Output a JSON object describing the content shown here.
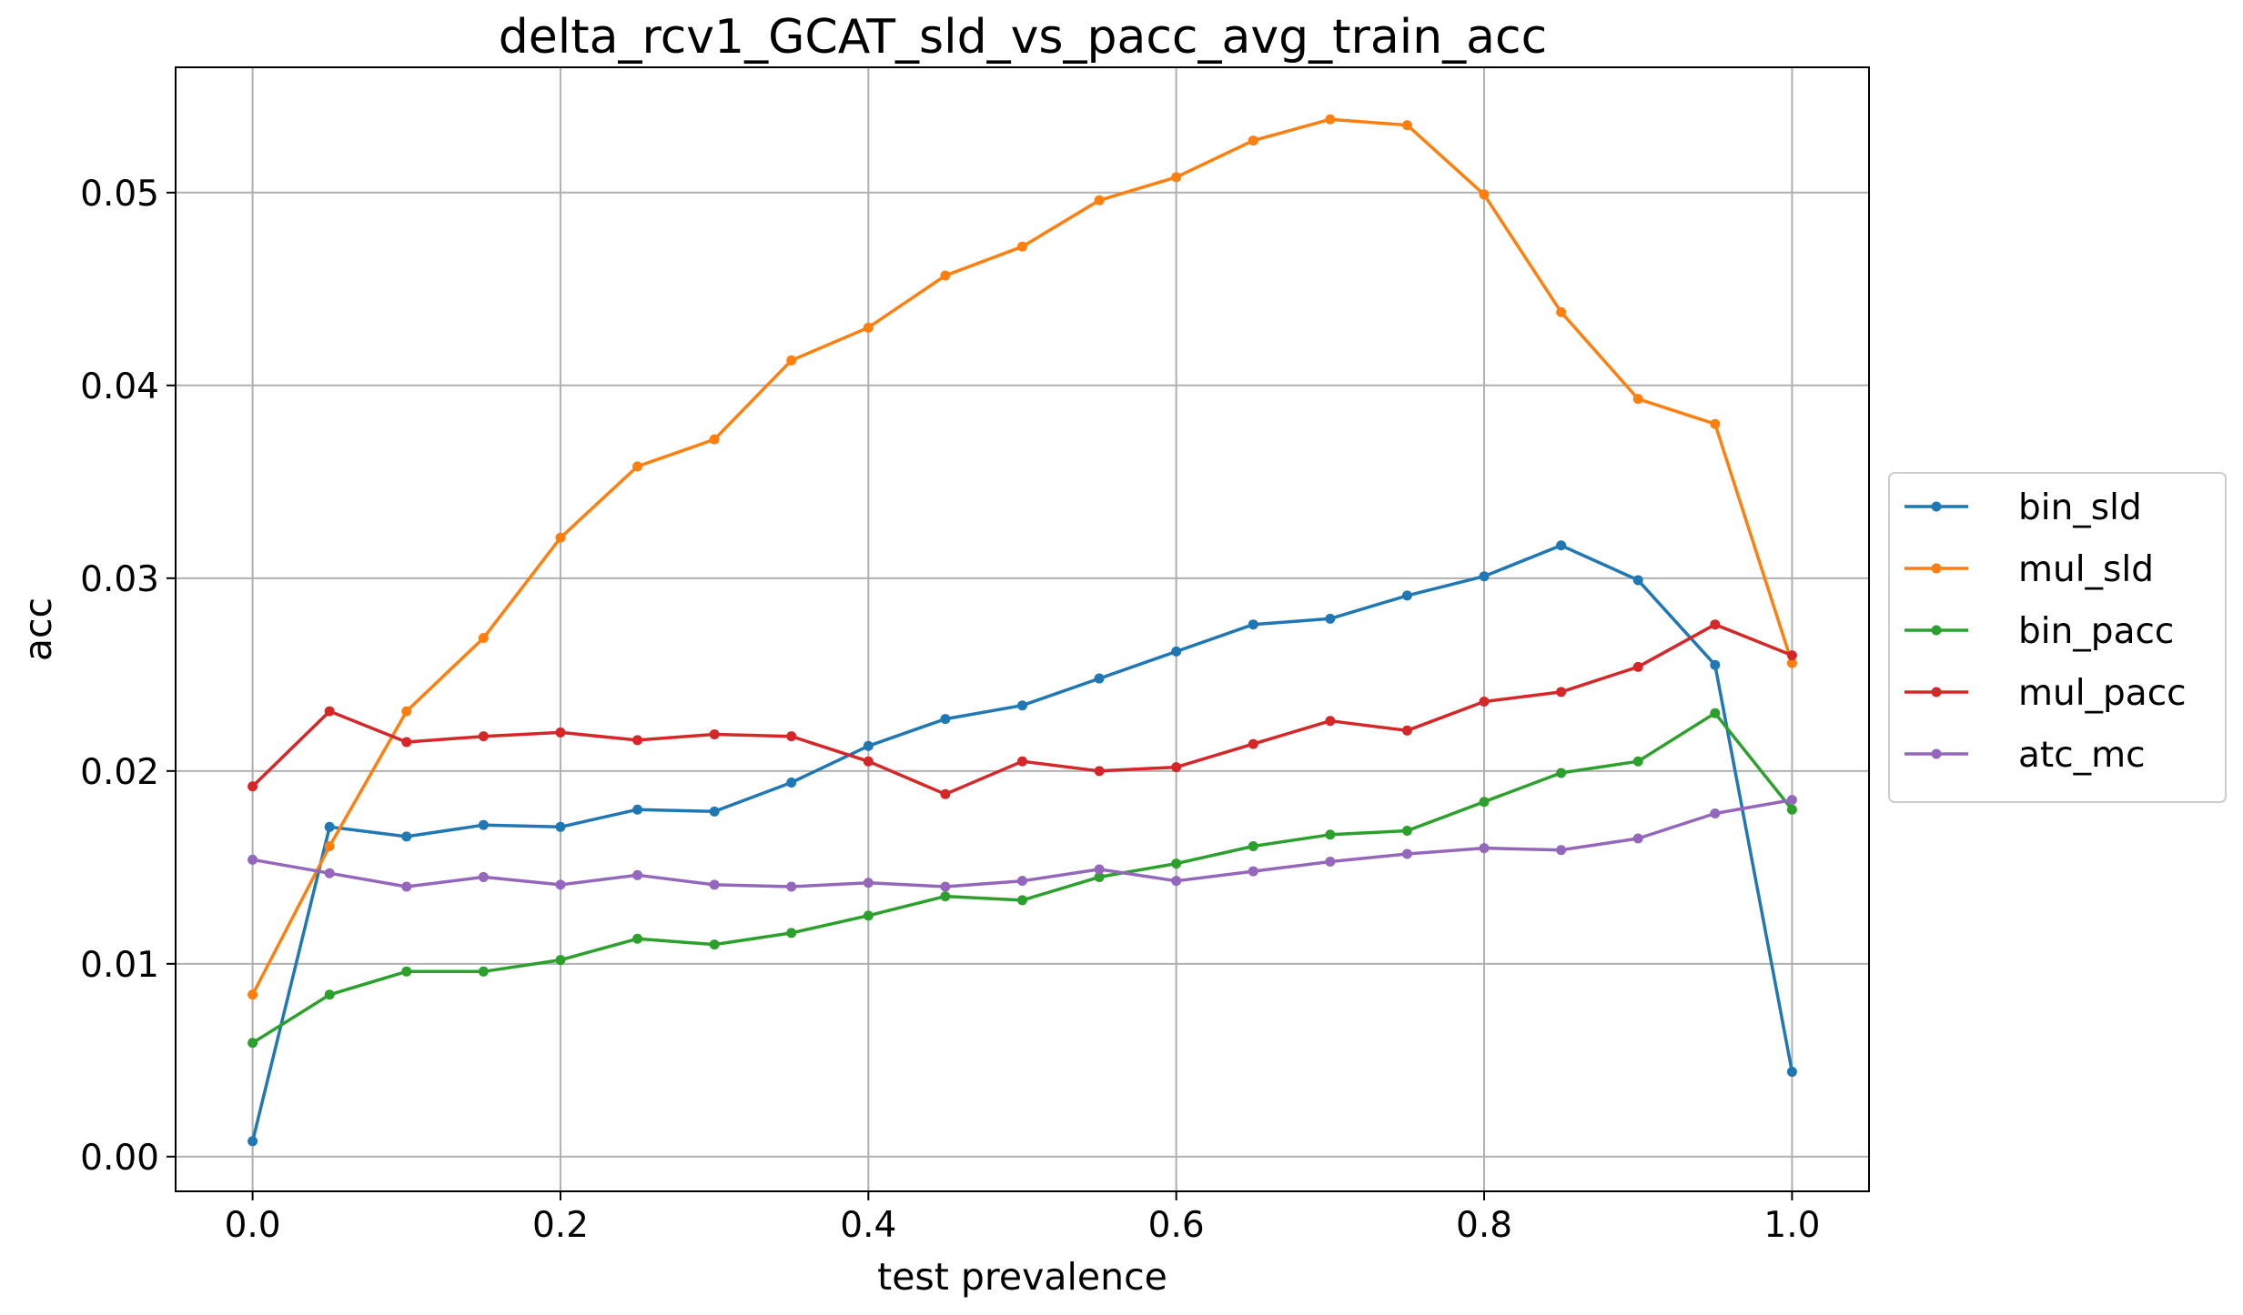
{
  "chart_data": {
    "type": "line",
    "title": "delta_rcv1_GCAT_sld_vs_pacc_avg_train_acc",
    "xlabel": "test prevalence",
    "ylabel": "acc",
    "xlim": [
      -0.05,
      1.05
    ],
    "ylim": [
      -0.0018,
      0.0565
    ],
    "xticks": [
      0.0,
      0.2,
      0.4,
      0.6,
      0.8,
      1.0
    ],
    "xtick_labels": [
      "0.0",
      "0.2",
      "0.4",
      "0.6",
      "0.8",
      "1.0"
    ],
    "yticks": [
      0.0,
      0.01,
      0.02,
      0.03,
      0.04,
      0.05
    ],
    "ytick_labels": [
      "0.00",
      "0.01",
      "0.02",
      "0.03",
      "0.04",
      "0.05"
    ],
    "grid": true,
    "legend_position": "center-right-outside",
    "x": [
      0.0,
      0.05,
      0.1,
      0.15,
      0.2,
      0.25,
      0.3,
      0.35,
      0.4,
      0.45,
      0.5,
      0.55,
      0.6,
      0.65,
      0.7,
      0.75,
      0.8,
      0.85,
      0.9,
      0.95,
      1.0
    ],
    "series": [
      {
        "name": "bin_sld",
        "color": "#1f77b4",
        "values": [
          0.0008,
          0.0171,
          0.0166,
          0.0172,
          0.0171,
          0.018,
          0.0179,
          0.0194,
          0.0213,
          0.0227,
          0.0234,
          0.0248,
          0.0262,
          0.0276,
          0.0279,
          0.0291,
          0.0301,
          0.0317,
          0.0299,
          0.0255,
          0.0044
        ]
      },
      {
        "name": "mul_sld",
        "color": "#ff7f0e",
        "values": [
          0.0084,
          0.0161,
          0.0231,
          0.0269,
          0.0321,
          0.0358,
          0.0372,
          0.0413,
          0.043,
          0.0457,
          0.0472,
          0.0496,
          0.0508,
          0.0527,
          0.0538,
          0.0535,
          0.0499,
          0.0438,
          0.0393,
          0.038,
          0.0256
        ]
      },
      {
        "name": "bin_pacc",
        "color": "#2ca02c",
        "values": [
          0.0059,
          0.0084,
          0.0096,
          0.0096,
          0.0102,
          0.0113,
          0.011,
          0.0116,
          0.0125,
          0.0135,
          0.0133,
          0.0145,
          0.0152,
          0.0161,
          0.0167,
          0.0169,
          0.0184,
          0.0199,
          0.0205,
          0.023,
          0.018
        ]
      },
      {
        "name": "mul_pacc",
        "color": "#d62728",
        "values": [
          0.0192,
          0.0231,
          0.0215,
          0.0218,
          0.022,
          0.0216,
          0.0219,
          0.0218,
          0.0205,
          0.0188,
          0.0205,
          0.02,
          0.0202,
          0.0214,
          0.0226,
          0.0221,
          0.0236,
          0.0241,
          0.0254,
          0.0276,
          0.026
        ]
      },
      {
        "name": "atc_mc",
        "color": "#9467bd",
        "values": [
          0.0154,
          0.0147,
          0.014,
          0.0145,
          0.0141,
          0.0146,
          0.0141,
          0.014,
          0.0142,
          0.014,
          0.0143,
          0.0149,
          0.0143,
          0.0148,
          0.0153,
          0.0157,
          0.016,
          0.0159,
          0.0165,
          0.0178,
          0.0185
        ]
      }
    ]
  }
}
